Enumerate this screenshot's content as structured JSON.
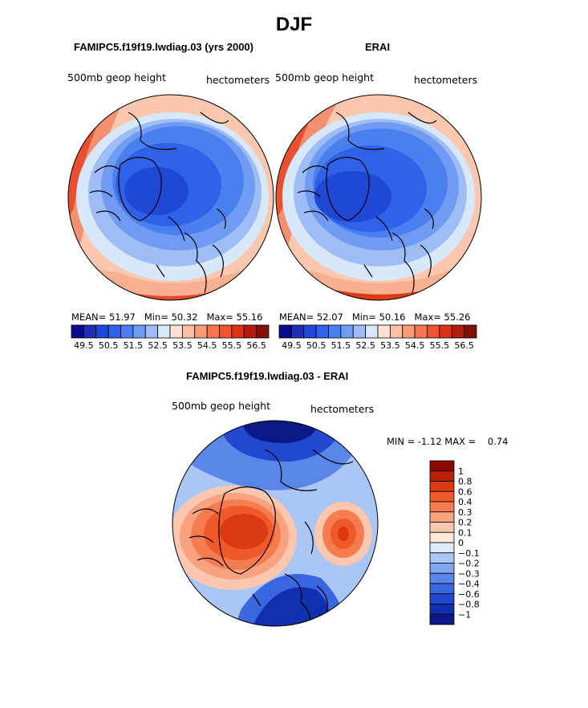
{
  "page": {
    "title": "DJF"
  },
  "panels": [
    {
      "title": "FAMIPC5.f19f19.lwdiag.03 (yrs 2000)",
      "field": "500mb geop height",
      "units": "hectometers",
      "stats": {
        "mean_label": "MEAN=",
        "mean": "51.97",
        "min_label": "Min=",
        "min": "50.32",
        "max_label": "Max=",
        "max": "55.16"
      }
    },
    {
      "title": "ERAI",
      "field": "500mb geop height",
      "units": "hectometers",
      "stats": {
        "mean_label": "MEAN=",
        "mean": "52.07",
        "min_label": "Min=",
        "min": "50.16",
        "max_label": "Max=",
        "max": "55.26"
      }
    },
    {
      "title": "FAMIPC5.f19f19.lwdiag.03 - ERAI",
      "field": "500mb geop height",
      "units": "hectometers",
      "stats": {
        "min_label": "MIN =",
        "min": "-1.12",
        "max_label": "MAX =",
        "max": "0.74"
      }
    }
  ],
  "colorbars": {
    "horizontal": {
      "colors": [
        "#0a0a8c",
        "#1e2fb4",
        "#1f48d6",
        "#2f62e8",
        "#4a7ff0",
        "#6f9cf2",
        "#9ebdf6",
        "#d8e8fb",
        "#fde0d0",
        "#fbc0a6",
        "#f99b77",
        "#f6774f",
        "#ef522d",
        "#dc3216",
        "#b41c0a",
        "#821006"
      ],
      "tick_labels": [
        "49.5",
        "50.5",
        "51.5",
        "52.5",
        "53.5",
        "54.5",
        "55.5",
        "56.5"
      ]
    },
    "vertical": {
      "colors": [
        "#8b0a00",
        "#b82008",
        "#dc3a12",
        "#f05a2a",
        "#f57c50",
        "#f8a280",
        "#fbc7ae",
        "#fde8dc",
        "#ddebf8",
        "#a9c6f4",
        "#7fa6f0",
        "#5a86ea",
        "#3a66e0",
        "#2248d0",
        "#1030b0",
        "#0a1888"
      ],
      "tick_labels": [
        "1",
        "0.8",
        "0.6",
        "0.4",
        "0.3",
        "0.2",
        "0.1",
        "0",
        "−0.1",
        "−0.2",
        "−0.3",
        "−0.4",
        "−0.6",
        "−0.8",
        "−1"
      ]
    }
  },
  "chart_data": [
    {
      "type": "heatmap",
      "projection": "north polar stereographic",
      "title": "FAMIPC5.f19f19.lwdiag.03 (yrs 2000)",
      "levels": [
        49.5,
        50.0,
        50.5,
        51.0,
        51.5,
        52.0,
        52.5,
        53.0,
        53.5,
        54.0,
        54.5,
        55.0,
        55.5,
        56.0,
        56.5
      ],
      "summary": {
        "mean": 51.97,
        "min": 50.32,
        "max": 55.16
      }
    },
    {
      "type": "heatmap",
      "projection": "north polar stereographic",
      "title": "ERAI",
      "levels": [
        49.5,
        50.0,
        50.5,
        51.0,
        51.5,
        52.0,
        52.5,
        53.0,
        53.5,
        54.0,
        54.5,
        55.0,
        55.5,
        56.0,
        56.5
      ],
      "summary": {
        "mean": 52.07,
        "min": 50.16,
        "max": 55.26
      }
    },
    {
      "type": "heatmap",
      "projection": "north polar stereographic",
      "title": "FAMIPC5.f19f19.lwdiag.03 - ERAI",
      "levels": [
        -1,
        -0.8,
        -0.6,
        -0.4,
        -0.3,
        -0.2,
        -0.1,
        0,
        0.1,
        0.2,
        0.3,
        0.4,
        0.6,
        0.8,
        1
      ],
      "summary": {
        "min": -1.12,
        "max": 0.74
      }
    }
  ]
}
